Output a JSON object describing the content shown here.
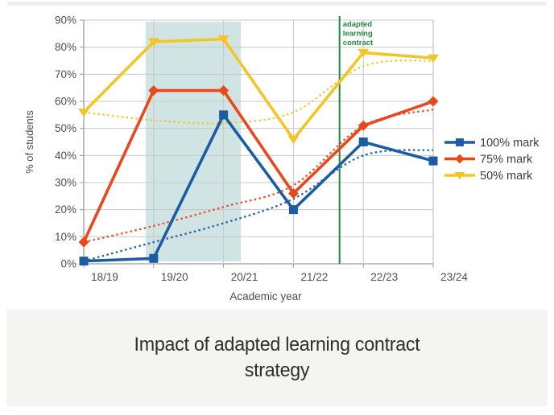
{
  "caption": {
    "text": "Impact of adapted learning contract strategy"
  },
  "chart_data": {
    "type": "line",
    "title": "Impact of adapted learning contract strategy",
    "xlabel": "Academic year",
    "ylabel": "% of students",
    "categories": [
      "18/19",
      "19/20",
      "20/21",
      "21/22",
      "22/23",
      "23/24"
    ],
    "ylim": [
      0,
      90
    ],
    "ytick_interval": 10,
    "ytick_labels": [
      "0%",
      "10%",
      "20%",
      "30%",
      "40%",
      "50%",
      "60%",
      "70%",
      "80%",
      "90%"
    ],
    "grid": true,
    "legend_position": "right",
    "series": [
      {
        "name": "100% mark",
        "color": "#1B5CA3",
        "marker": "square",
        "values": [
          1,
          2,
          55,
          20,
          45,
          38
        ],
        "trend_values": [
          1,
          8,
          15,
          24,
          40,
          42
        ],
        "trend_style": "dotted"
      },
      {
        "name": "75% mark",
        "color": "#E8481C",
        "marker": "diamond",
        "values": [
          8,
          64,
          64,
          26,
          51,
          60
        ],
        "trend_values": [
          8,
          14,
          21,
          29,
          51,
          57
        ],
        "trend_style": "dotted"
      },
      {
        "name": "50% mark",
        "color": "#F4C625",
        "marker": "triangle-down",
        "values": [
          56,
          82,
          83,
          46,
          78,
          76
        ],
        "trend_values": [
          56,
          53,
          52,
          56,
          73,
          75
        ],
        "trend_style": "dotted"
      }
    ],
    "annotation_line": {
      "text": "adapted learning contract",
      "label_lines": [
        "adapted",
        "learning",
        "contract"
      ],
      "color": "#1F8B3B",
      "x_index": 3.66
    },
    "highlight_region": {
      "x_index_start": 0.887,
      "x_index_end": 2.247,
      "color": "#CDE4E2"
    },
    "colors": {
      "gridline": "#C9C9C9",
      "axis": "#9B9B9B",
      "tick_text": "#4D4D4D",
      "legend_text": "#3B3B3B"
    }
  }
}
